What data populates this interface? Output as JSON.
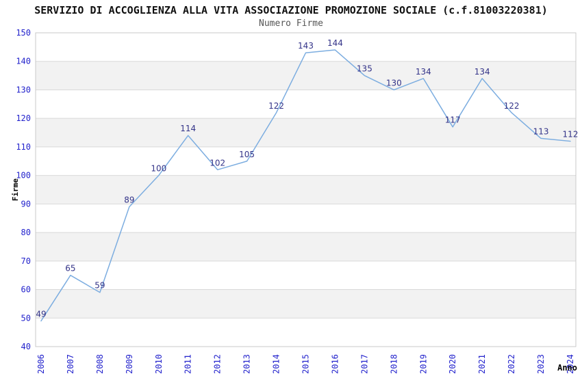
{
  "header": {
    "title": "SERVIZIO DI ACCOGLIENZA ALLA VITA ASSOCIAZIONE PROMOZIONE SOCIALE (c.f.81003220381)",
    "subtitle": "Numero Firme"
  },
  "chart_data": {
    "type": "line",
    "title": "SERVIZIO DI ACCOGLIENZA ALLA VITA ASSOCIAZIONE PROMOZIONE SOCIALE (c.f.81003220381)",
    "subtitle": "Numero Firme",
    "xlabel": "Anno",
    "ylabel": "Firme",
    "x": [
      "2006",
      "2007",
      "2008",
      "2009",
      "2010",
      "2011",
      "2012",
      "2013",
      "2014",
      "2015",
      "2016",
      "2017",
      "2018",
      "2019",
      "2020",
      "2021",
      "2022",
      "2023",
      "2024"
    ],
    "values": [
      49,
      65,
      59,
      89,
      100,
      114,
      102,
      105,
      122,
      143,
      144,
      135,
      130,
      134,
      117,
      134,
      122,
      113,
      112
    ],
    "ylim": [
      40,
      150
    ],
    "ytick_step": 10,
    "yticks": [
      40,
      50,
      60,
      70,
      80,
      90,
      100,
      110,
      120,
      130,
      140,
      150
    ],
    "grid": "horizontal-bands-alternating",
    "legend": "none",
    "show_data_labels": true,
    "colors": {
      "line": "#7cade0",
      "tick_label": "#2222cc",
      "data_label": "#333388",
      "band": "#f2f2f2",
      "gridline": "#d9d9d9",
      "plot_border": "#c9c9c9",
      "title": "#111111",
      "subtitle": "#555555",
      "axis_title": "#000000",
      "background": "#ffffff"
    }
  }
}
